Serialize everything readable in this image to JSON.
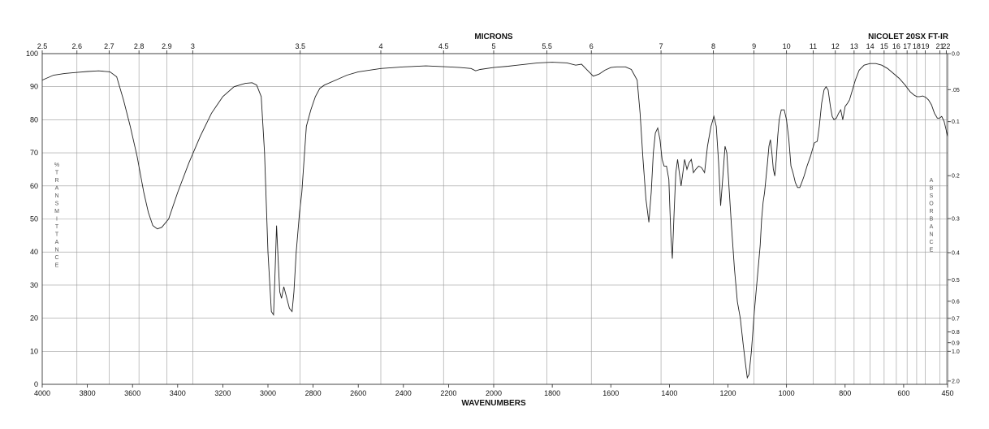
{
  "chart_data": {
    "type": "line",
    "title": "NICOLET 20SX FT-IR",
    "xlabel": "WAVENUMBERS",
    "top_label": "MICRONS",
    "ylabel_left": "%TRANSMITTANCE",
    "ylabel_right": "ABSORBANCE",
    "x_breakpoint": 2000,
    "x_ticks": [
      "4000",
      "3800",
      "3600",
      "3400",
      "3200",
      "3000",
      "2800",
      "2600",
      "2400",
      "2200",
      "2000",
      "1800",
      "1600",
      "1400",
      "1200",
      "1000",
      "800",
      "600",
      "450"
    ],
    "y_ticks": [
      "0",
      "10",
      "20",
      "30",
      "40",
      "50",
      "60",
      "70",
      "80",
      "90",
      "100"
    ],
    "micron_ticks": [
      "2.5",
      "2.6",
      "2.7",
      "2.8",
      "2.9",
      "3",
      "3.5",
      "4",
      "4.5",
      "5",
      "5.5",
      "6",
      "7",
      "8",
      "9",
      "10",
      "11",
      "12",
      "13",
      "14",
      "15",
      "16",
      "17",
      "18",
      "19",
      "21",
      "22"
    ],
    "absorbance_ticks": [
      "0.0",
      ".05",
      "0.1",
      "0.2",
      "0.3",
      "0.4",
      "0.5",
      "0.6",
      "0.7",
      "0.8",
      "0.9",
      "1.0",
      "2.0"
    ],
    "xlim": [
      4000,
      450
    ],
    "ylim": [
      0,
      100
    ],
    "grid": true,
    "series": [
      {
        "values": [
          [
            4000,
            92
          ],
          [
            3950,
            93.5
          ],
          [
            3900,
            94
          ],
          [
            3850,
            94.3
          ],
          [
            3800,
            94.6
          ],
          [
            3750,
            94.8
          ],
          [
            3700,
            94.5
          ],
          [
            3670,
            93
          ],
          [
            3640,
            86
          ],
          [
            3610,
            78
          ],
          [
            3580,
            69
          ],
          [
            3550,
            58
          ],
          [
            3530,
            52
          ],
          [
            3510,
            48
          ],
          [
            3490,
            47
          ],
          [
            3470,
            47.5
          ],
          [
            3440,
            50
          ],
          [
            3400,
            58
          ],
          [
            3350,
            67
          ],
          [
            3300,
            75
          ],
          [
            3250,
            82
          ],
          [
            3200,
            87
          ],
          [
            3150,
            90
          ],
          [
            3100,
            91
          ],
          [
            3070,
            91.2
          ],
          [
            3050,
            90.5
          ],
          [
            3030,
            87
          ],
          [
            3015,
            70
          ],
          [
            3000,
            40
          ],
          [
            2985,
            22
          ],
          [
            2975,
            21
          ],
          [
            2968,
            35
          ],
          [
            2962,
            48
          ],
          [
            2955,
            38
          ],
          [
            2948,
            28
          ],
          [
            2940,
            26
          ],
          [
            2930,
            29.5
          ],
          [
            2920,
            27
          ],
          [
            2905,
            23
          ],
          [
            2893,
            22
          ],
          [
            2885,
            28
          ],
          [
            2875,
            40
          ],
          [
            2860,
            52
          ],
          [
            2850,
            58
          ],
          [
            2840,
            68
          ],
          [
            2830,
            78
          ],
          [
            2810,
            83
          ],
          [
            2790,
            87
          ],
          [
            2770,
            89.5
          ],
          [
            2750,
            90.5
          ],
          [
            2700,
            92
          ],
          [
            2650,
            93.5
          ],
          [
            2600,
            94.5
          ],
          [
            2500,
            95.5
          ],
          [
            2400,
            96
          ],
          [
            2300,
            96.3
          ],
          [
            2200,
            96
          ],
          [
            2150,
            95.8
          ],
          [
            2100,
            95.5
          ],
          [
            2080,
            94.8
          ],
          [
            2060,
            95.2
          ],
          [
            2000,
            95.8
          ],
          [
            1950,
            96.2
          ],
          [
            1900,
            96.7
          ],
          [
            1850,
            97.2
          ],
          [
            1800,
            97.4
          ],
          [
            1750,
            97.2
          ],
          [
            1720,
            96.5
          ],
          [
            1700,
            96.8
          ],
          [
            1680,
            95
          ],
          [
            1660,
            93.2
          ],
          [
            1640,
            93.8
          ],
          [
            1620,
            95
          ],
          [
            1600,
            95.8
          ],
          [
            1580,
            96
          ],
          [
            1550,
            96
          ],
          [
            1530,
            95.2
          ],
          [
            1510,
            92
          ],
          [
            1500,
            82
          ],
          [
            1490,
            68
          ],
          [
            1480,
            56
          ],
          [
            1470,
            49
          ],
          [
            1462,
            58
          ],
          [
            1455,
            70
          ],
          [
            1448,
            76
          ],
          [
            1440,
            77.5
          ],
          [
            1432,
            74
          ],
          [
            1425,
            68
          ],
          [
            1418,
            66
          ],
          [
            1410,
            66
          ],
          [
            1402,
            62
          ],
          [
            1395,
            45
          ],
          [
            1390,
            38
          ],
          [
            1384,
            52
          ],
          [
            1378,
            64
          ],
          [
            1372,
            68
          ],
          [
            1366,
            64
          ],
          [
            1360,
            60
          ],
          [
            1354,
            64
          ],
          [
            1348,
            68
          ],
          [
            1340,
            65
          ],
          [
            1333,
            67
          ],
          [
            1325,
            68
          ],
          [
            1318,
            64
          ],
          [
            1310,
            65
          ],
          [
            1300,
            66
          ],
          [
            1290,
            65.5
          ],
          [
            1280,
            64
          ],
          [
            1270,
            72
          ],
          [
            1258,
            78
          ],
          [
            1248,
            81
          ],
          [
            1240,
            78
          ],
          [
            1232,
            67
          ],
          [
            1225,
            54
          ],
          [
            1218,
            62
          ],
          [
            1210,
            72
          ],
          [
            1204,
            70
          ],
          [
            1198,
            62
          ],
          [
            1188,
            48
          ],
          [
            1178,
            35
          ],
          [
            1168,
            25
          ],
          [
            1158,
            20
          ],
          [
            1148,
            12
          ],
          [
            1140,
            6
          ],
          [
            1134,
            2
          ],
          [
            1128,
            3
          ],
          [
            1120,
            10
          ],
          [
            1110,
            22
          ],
          [
            1100,
            32
          ],
          [
            1090,
            42
          ],
          [
            1085,
            50
          ],
          [
            1080,
            55
          ],
          [
            1075,
            58
          ],
          [
            1066,
            66
          ],
          [
            1060,
            72
          ],
          [
            1055,
            74
          ],
          [
            1050,
            70
          ],
          [
            1045,
            65
          ],
          [
            1040,
            63
          ],
          [
            1035,
            68
          ],
          [
            1030,
            75
          ],
          [
            1025,
            80
          ],
          [
            1018,
            83
          ],
          [
            1008,
            83
          ],
          [
            1000,
            80
          ],
          [
            992,
            74
          ],
          [
            985,
            66
          ],
          [
            978,
            64
          ],
          [
            970,
            61
          ],
          [
            962,
            59.5
          ],
          [
            955,
            59.5
          ],
          [
            948,
            61
          ],
          [
            940,
            63
          ],
          [
            930,
            66
          ],
          [
            918,
            69
          ],
          [
            905,
            73
          ],
          [
            895,
            73.5
          ],
          [
            888,
            78
          ],
          [
            880,
            85
          ],
          [
            872,
            89
          ],
          [
            865,
            90
          ],
          [
            858,
            89
          ],
          [
            850,
            84
          ],
          [
            844,
            81
          ],
          [
            838,
            80
          ],
          [
            830,
            80.5
          ],
          [
            822,
            82
          ],
          [
            815,
            83
          ],
          [
            808,
            80
          ],
          [
            800,
            84
          ],
          [
            792,
            85
          ],
          [
            785,
            86
          ],
          [
            775,
            89
          ],
          [
            765,
            92
          ],
          [
            752,
            95
          ],
          [
            735,
            96.5
          ],
          [
            715,
            97
          ],
          [
            695,
            97
          ],
          [
            675,
            96.5
          ],
          [
            655,
            95.5
          ],
          [
            635,
            94
          ],
          [
            615,
            92.5
          ],
          [
            595,
            90.5
          ],
          [
            578,
            88.5
          ],
          [
            565,
            87.5
          ],
          [
            555,
            87
          ],
          [
            545,
            87
          ],
          [
            535,
            87.2
          ],
          [
            525,
            86.8
          ],
          [
            515,
            86
          ],
          [
            505,
            84.5
          ],
          [
            495,
            82
          ],
          [
            485,
            80.5
          ],
          [
            478,
            80.5
          ],
          [
            470,
            81
          ],
          [
            462,
            79.5
          ],
          [
            455,
            77
          ],
          [
            450,
            75
          ]
        ]
      }
    ]
  }
}
